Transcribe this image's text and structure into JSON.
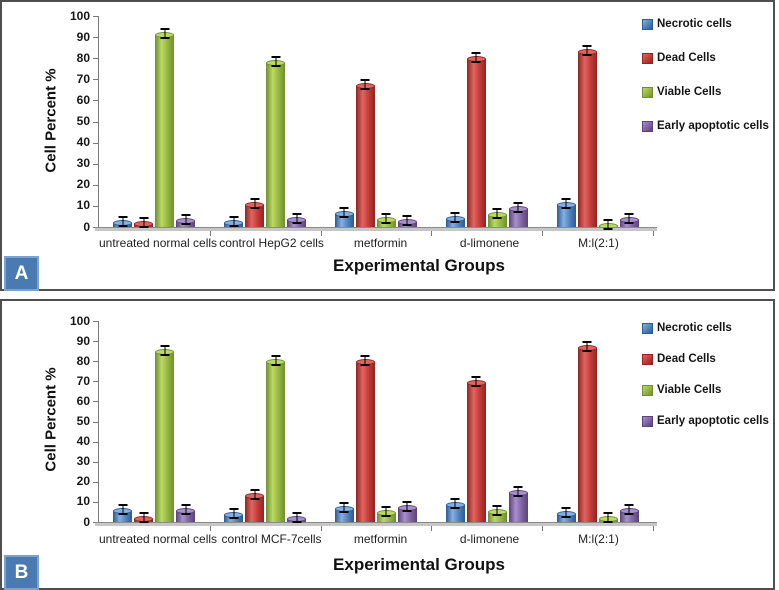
{
  "figure": {
    "panel_labels": [
      "A",
      "B"
    ]
  },
  "chart_data": [
    {
      "type": "bar",
      "panel": "A",
      "xlabel": "Experimental Groups",
      "ylabel": "Cell Percent %",
      "ylim": [
        0,
        100
      ],
      "yticks": [
        0,
        10,
        20,
        30,
        40,
        50,
        60,
        70,
        80,
        90,
        100
      ],
      "grid": false,
      "legend_position": "right",
      "error_bars": {
        "shown": true,
        "approx_magnitude_pct": 1
      },
      "categories": [
        "untreated normal cells",
        "control HepG2 cells",
        "metformin",
        "d-limonene",
        "M:l(2:1)"
      ],
      "series": [
        {
          "name": "Necrotic cells",
          "color": "#4f81bd",
          "shades": {
            "dark": "#2c5a92",
            "mid": "#4f81bd",
            "light": "#85b0e0"
          },
          "values": [
            2.5,
            2.2,
            6.5,
            4.5,
            11
          ]
        },
        {
          "name": "Dead Cells",
          "color": "#c0504d",
          "shades": {
            "dark": "#8e2522",
            "mid": "#c23a37",
            "light": "#e06560"
          },
          "values": [
            1.8,
            11,
            67.5,
            80,
            83.5
          ]
        },
        {
          "name": "Viable Cells",
          "color": "#9bbb59",
          "shades": {
            "dark": "#6e8f33",
            "mid": "#93b53f",
            "light": "#bada63"
          },
          "values": [
            91.5,
            78,
            4,
            6,
            1
          ]
        },
        {
          "name": "Early apoptotic cells",
          "color": "#8064a2",
          "shades": {
            "dark": "#5a4379",
            "mid": "#7e62a1",
            "light": "#a98fcb"
          },
          "values": [
            3.5,
            4,
            3,
            9,
            4
          ]
        }
      ]
    },
    {
      "type": "bar",
      "panel": "B",
      "xlabel": "Experimental Groups",
      "ylabel": "Cell Percent %",
      "ylim": [
        0,
        100
      ],
      "yticks": [
        0,
        10,
        20,
        30,
        40,
        50,
        60,
        70,
        80,
        90,
        100
      ],
      "grid": false,
      "legend_position": "right",
      "error_bars": {
        "shown": true,
        "approx_magnitude_pct": 1
      },
      "categories": [
        "untreated normal cells",
        "control MCF-7cells",
        "metformin",
        "d-limonene",
        "M:l(2:1)"
      ],
      "series": [
        {
          "name": "Necrotic cells",
          "color": "#4f81bd",
          "shades": {
            "dark": "#2c5a92",
            "mid": "#4f81bd",
            "light": "#85b0e0"
          },
          "values": [
            6,
            4,
            7,
            9,
            4.5
          ]
        },
        {
          "name": "Dead Cells",
          "color": "#c0504d",
          "shades": {
            "dark": "#8e2522",
            "mid": "#c23a37",
            "light": "#e06560"
          },
          "values": [
            1.8,
            13.5,
            80,
            69.5,
            87
          ]
        },
        {
          "name": "Viable Cells",
          "color": "#9bbb59",
          "shades": {
            "dark": "#6e8f33",
            "mid": "#93b53f",
            "light": "#bada63"
          },
          "values": [
            85,
            80,
            5,
            5.5,
            2
          ]
        },
        {
          "name": "Early apoptotic cells",
          "color": "#8064a2",
          "shades": {
            "dark": "#5a4379",
            "mid": "#7e62a1",
            "light": "#a98fcb"
          },
          "values": [
            6,
            2,
            7.5,
            15,
            6
          ]
        }
      ]
    }
  ]
}
